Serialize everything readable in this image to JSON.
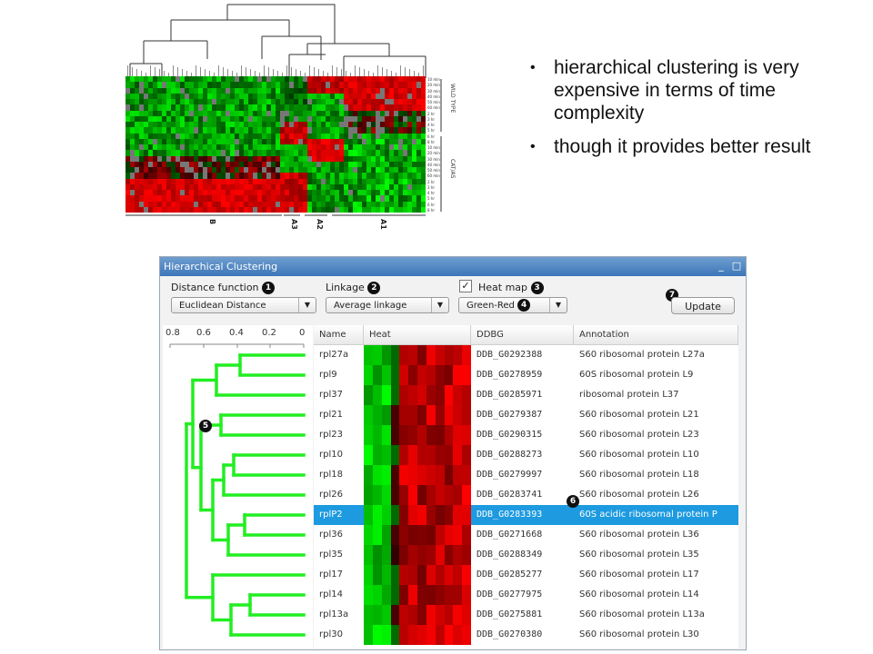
{
  "bullets": [
    "hierarchical clustering is very expensive in terms of time complexity",
    "though it provides better result"
  ],
  "top_figure": {
    "row_labels": [
      "10 min",
      "20 min",
      "30 min",
      "40 min",
      "50 min",
      "60 min",
      "2 hr",
      "3 hr",
      "4 hr",
      "5 hr",
      "6 hr",
      "8 hr",
      "10 min",
      "20 min",
      "30 min",
      "40 min",
      "50 min",
      "60 min",
      "2 hr",
      "3 hr",
      "4 hr",
      "5 hr",
      "6 hr",
      "8 hr"
    ],
    "side_labels": [
      "WILD TYPE",
      "CAT/AS"
    ],
    "group_labels": [
      "B",
      "A3",
      "A2",
      "A1"
    ]
  },
  "window": {
    "title": "Hierarchical Clustering",
    "minimize": "_",
    "maximize": "□",
    "distance_label": "Distance function",
    "distance_badge": "1",
    "distance_value": "Euclidean Distance",
    "linkage_label": "Linkage",
    "linkage_badge": "2",
    "linkage_value": "Average linkage",
    "heatmap_label": "Heat map",
    "heatmap_badge": "3",
    "heatmap_checked": "✓",
    "color_value": "Green-Red",
    "color_badge": "4",
    "update_badge": "7",
    "update_label": "Update",
    "tree_badge": "5",
    "row_badge": "6",
    "scale": [
      "0.8",
      "0.6",
      "0.4",
      "0.2",
      "0"
    ],
    "columns": [
      "Name",
      "Heat",
      "DDBG",
      "Annotation"
    ],
    "rows": [
      {
        "name": "rpl27a",
        "ddbg": "DDB_G0292388",
        "annotation": "S60 ribosomal protein L27a"
      },
      {
        "name": "rpl9",
        "ddbg": "DDB_G0278959",
        "annotation": "60S ribosomal protein L9"
      },
      {
        "name": "rpl37",
        "ddbg": "DDB_G0285971",
        "annotation": "ribosomal protein L37"
      },
      {
        "name": "rpl21",
        "ddbg": "DDB_G0279387",
        "annotation": "S60 ribosomal protein L21"
      },
      {
        "name": "rpl23",
        "ddbg": "DDB_G0290315",
        "annotation": "S60 ribosomal protein L23"
      },
      {
        "name": "rpl10",
        "ddbg": "DDB_G0288273",
        "annotation": "S60 ribosomal protein L10"
      },
      {
        "name": "rpl18",
        "ddbg": "DDB_G0279997",
        "annotation": "S60 ribosomal protein L18"
      },
      {
        "name": "rpl26",
        "ddbg": "DDB_G0283741",
        "annotation": "S60 ribosomal protein L26"
      },
      {
        "name": "rplP2",
        "ddbg": "DDB_G0283393",
        "annotation": "60S acidic ribosomal protein P"
      },
      {
        "name": "rpl36",
        "ddbg": "DDB_G0271668",
        "annotation": "S60 ribosomal protein L36"
      },
      {
        "name": "rpl35",
        "ddbg": "DDB_G0288349",
        "annotation": "S60 ribosomal protein L35"
      },
      {
        "name": "rpl17",
        "ddbg": "DDB_G0285277",
        "annotation": "S60 ribosomal protein L17"
      },
      {
        "name": "rpl14",
        "ddbg": "DDB_G0277975",
        "annotation": "S60 ribosomal protein L14"
      },
      {
        "name": "rpl13a",
        "ddbg": "DDB_G0275881",
        "annotation": "S60 ribosomal protein L13a"
      },
      {
        "name": "rpl30",
        "ddbg": "DDB_G0270380",
        "annotation": "S60 ribosomal protein L30"
      }
    ],
    "selected_row": 8
  },
  "colors": {
    "tree": "#22ee22",
    "selection": "#1d9ae0",
    "title_bar": "#4a82c0"
  }
}
